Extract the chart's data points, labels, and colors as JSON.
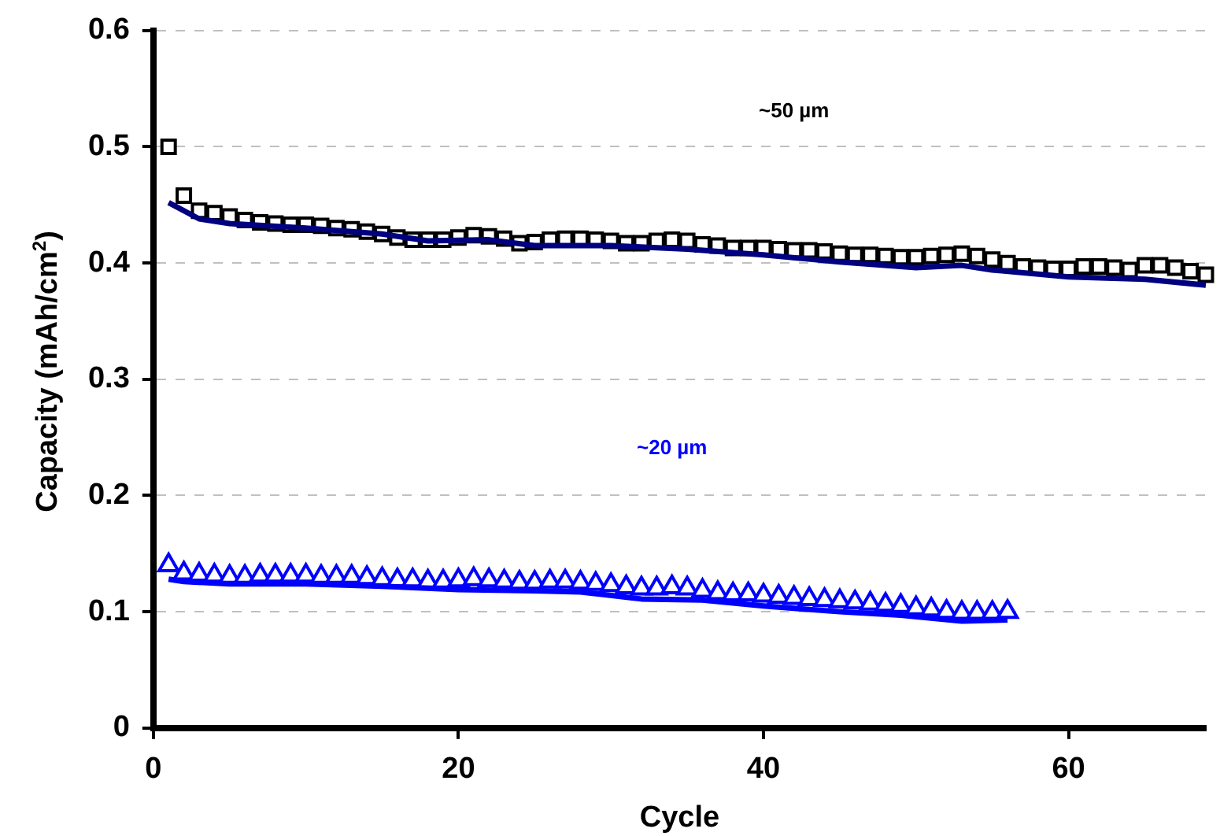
{
  "chart_data": {
    "type": "line",
    "xlabel": "Cycle",
    "ylabel": "Capacity (mAh/cm$^{2}$)",
    "xlim": [
      0,
      69
    ],
    "xticks": [
      0,
      20,
      40,
      60
    ],
    "ylim": [
      0,
      0.6
    ],
    "yticks": [
      0,
      0.1,
      0.2,
      0.3,
      0.4,
      0.5,
      0.6
    ],
    "grid": "y",
    "legend": false,
    "series": [
      {
        "type": "scatter",
        "marker": "square",
        "name": "~50 µm",
        "color": "#000000",
        "x": [
          1,
          2,
          3,
          4,
          5,
          6,
          7,
          8,
          9,
          10,
          11,
          12,
          13,
          14,
          15,
          16,
          17,
          18,
          19,
          20,
          21,
          22,
          23,
          24,
          25,
          26,
          27,
          28,
          29,
          30,
          31,
          32,
          33,
          34,
          35,
          36,
          37,
          38,
          39,
          40,
          41,
          42,
          43,
          44,
          45,
          46,
          47,
          48,
          49,
          50,
          51,
          52,
          53,
          54,
          55,
          56,
          57,
          58,
          59,
          60,
          61,
          62,
          63,
          64,
          65,
          66,
          67,
          68,
          69
        ],
        "values": [
          0.5,
          0.458,
          0.445,
          0.443,
          0.44,
          0.437,
          0.435,
          0.434,
          0.433,
          0.433,
          0.432,
          0.43,
          0.429,
          0.427,
          0.425,
          0.422,
          0.42,
          0.42,
          0.42,
          0.422,
          0.424,
          0.423,
          0.421,
          0.417,
          0.418,
          0.42,
          0.421,
          0.421,
          0.42,
          0.419,
          0.417,
          0.417,
          0.419,
          0.42,
          0.419,
          0.416,
          0.415,
          0.413,
          0.413,
          0.413,
          0.412,
          0.411,
          0.411,
          0.41,
          0.408,
          0.407,
          0.407,
          0.406,
          0.405,
          0.405,
          0.406,
          0.407,
          0.408,
          0.406,
          0.403,
          0.4,
          0.397,
          0.396,
          0.395,
          0.395,
          0.397,
          0.397,
          0.396,
          0.394,
          0.398,
          0.398,
          0.396,
          0.393,
          0.39
        ]
      },
      {
        "marker": "none",
        "color": "#000080",
        "x": [
          1,
          3,
          5,
          10,
          15,
          18,
          22,
          25,
          30,
          35,
          40,
          45,
          50,
          53,
          55,
          60,
          65,
          69
        ],
        "values": [
          0.452,
          0.438,
          0.434,
          0.43,
          0.425,
          0.419,
          0.42,
          0.415,
          0.415,
          0.412,
          0.407,
          0.401,
          0.396,
          0.398,
          0.394,
          0.388,
          0.386,
          0.381
        ]
      },
      {
        "type": "scatter",
        "marker": "triangle",
        "name": "~20 µm",
        "color": "#0000ff",
        "x": [
          1,
          2,
          3,
          4,
          5,
          6,
          7,
          8,
          9,
          10,
          11,
          12,
          13,
          14,
          15,
          16,
          17,
          18,
          19,
          20,
          21,
          22,
          23,
          24,
          25,
          26,
          27,
          28,
          29,
          30,
          31,
          32,
          33,
          34,
          35,
          36,
          37,
          38,
          39,
          40,
          41,
          42,
          43,
          44,
          45,
          46,
          47,
          48,
          49,
          50,
          51,
          52,
          53,
          54,
          55,
          56
        ],
        "values": [
          0.14,
          0.133,
          0.132,
          0.131,
          0.13,
          0.13,
          0.131,
          0.131,
          0.131,
          0.131,
          0.13,
          0.13,
          0.13,
          0.129,
          0.128,
          0.127,
          0.127,
          0.126,
          0.126,
          0.127,
          0.128,
          0.127,
          0.126,
          0.125,
          0.125,
          0.126,
          0.126,
          0.125,
          0.124,
          0.123,
          0.121,
          0.12,
          0.12,
          0.121,
          0.12,
          0.118,
          0.116,
          0.115,
          0.115,
          0.114,
          0.113,
          0.112,
          0.111,
          0.11,
          0.109,
          0.108,
          0.107,
          0.106,
          0.105,
          0.103,
          0.102,
          0.1,
          0.099,
          0.099,
          0.099,
          0.1
        ]
      },
      {
        "marker": "none",
        "color": "#0000ff",
        "x": [
          1,
          2,
          5,
          10,
          15,
          20,
          25,
          28,
          32,
          36,
          40,
          45,
          49,
          53,
          56
        ],
        "values": [
          0.128,
          0.126,
          0.124,
          0.124,
          0.122,
          0.119,
          0.118,
          0.117,
          0.111,
          0.11,
          0.105,
          0.1,
          0.097,
          0.092,
          0.093
        ]
      }
    ]
  }
}
